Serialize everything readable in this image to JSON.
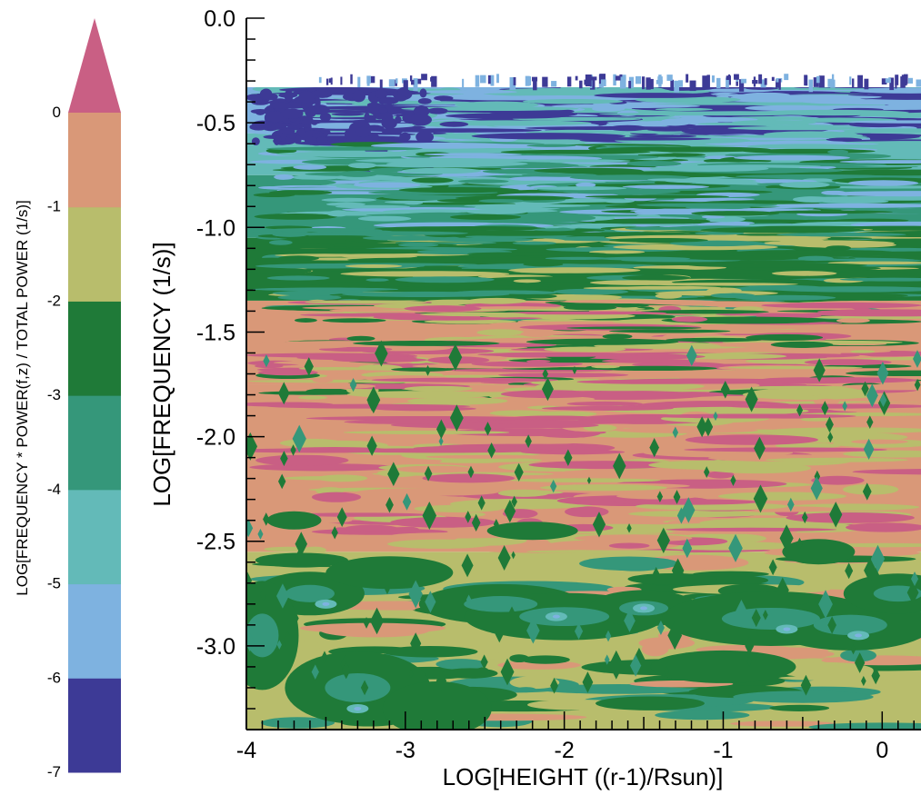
{
  "chart_data": {
    "type": "heatmap",
    "title": "",
    "xlabel": "LOG[HEIGHT ((r-1)/Rsun)]",
    "ylabel": "LOG[FREQUENCY (1/s)]",
    "xlim": [
      -4.0,
      0.25
    ],
    "ylim": [
      -3.4,
      0.0
    ],
    "x_ticks": [
      -4,
      -3,
      -2,
      -1,
      0
    ],
    "y_ticks": [
      0.0,
      -0.5,
      -1.0,
      -1.5,
      -2.0,
      -2.5,
      -3.0
    ],
    "x_tick_labels": [
      "-4",
      "-3",
      "-2",
      "-1",
      "0"
    ],
    "y_tick_labels": [
      "0.0",
      "-0.5",
      "-1.0",
      "-1.5",
      "-2.0",
      "-2.5",
      "-3.0"
    ],
    "colorbar": {
      "label": "LOG[FREQUENCY * POWER(f,z) / TOTAL POWER (1/s)]",
      "levels": [
        -7,
        -6,
        -5,
        -4,
        -3,
        -2,
        -1,
        0
      ],
      "level_labels": [
        "-7",
        "-6",
        "-5",
        "-4",
        "-3",
        "-2",
        "-1",
        "0"
      ],
      "colors": [
        "#3d3a96",
        "#7eb2e0",
        "#63bab8",
        "#35977a",
        "#1f7a38",
        "#b8bd6c",
        "#d99878",
        "#c95f84"
      ],
      "extend": "max"
    },
    "regions_approx": [
      {
        "level": "-7 to -6",
        "y_range": [
          -0.6,
          -0.3
        ],
        "note": "top band, densest near x=-3.8 and x=-3.0"
      },
      {
        "level": "-5 to -4",
        "y_range": [
          -1.0,
          -0.6
        ]
      },
      {
        "level": "-3 to -2",
        "y_range": [
          -1.4,
          -1.0
        ]
      },
      {
        "level": "-1 to 0",
        "y_range": [
          -2.6,
          -1.5
        ]
      },
      {
        "level": "-2 to -1",
        "y_range": [
          -2.4,
          -1.8
        ]
      },
      {
        "level": "-3 to -2",
        "y_range": [
          -3.4,
          -2.6
        ]
      }
    ]
  }
}
